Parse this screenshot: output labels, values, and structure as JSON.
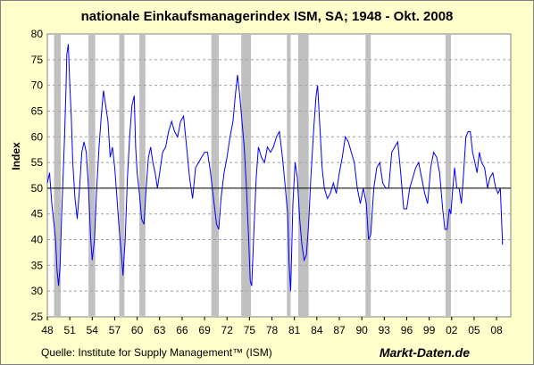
{
  "chart_data": {
    "type": "line",
    "title": "nationale Einkaufsmanagerindex ISM, SA; 1948 - Okt. 2008",
    "ylabel": "Index",
    "xlabel": "",
    "ylim": [
      25,
      80
    ],
    "yticks": [
      25,
      30,
      35,
      40,
      45,
      50,
      55,
      60,
      65,
      70,
      75,
      80
    ],
    "xlim": [
      1948,
      2009.9
    ],
    "xticks": [
      "48",
      "51",
      "54",
      "57",
      "60",
      "63",
      "66",
      "69",
      "72",
      "75",
      "78",
      "81",
      "84",
      "87",
      "90",
      "93",
      "96",
      "99",
      "02",
      "05",
      "08"
    ],
    "reference_line": 50,
    "grid": "horizontal dashed",
    "recessions": [
      [
        1948.9,
        1949.8
      ],
      [
        1953.5,
        1954.4
      ],
      [
        1957.6,
        1958.3
      ],
      [
        1960.3,
        1961.1
      ],
      [
        1969.9,
        1970.9
      ],
      [
        1973.9,
        1975.2
      ],
      [
        1980.0,
        1980.5
      ],
      [
        1981.5,
        1982.9
      ],
      [
        1990.5,
        1991.2
      ],
      [
        2001.2,
        2001.9
      ]
    ],
    "series": [
      {
        "color": "#0000ff",
        "points": [
          [
            1948.0,
            51
          ],
          [
            1948.3,
            53
          ],
          [
            1948.6,
            47
          ],
          [
            1948.9,
            43
          ],
          [
            1949.1,
            40
          ],
          [
            1949.3,
            34
          ],
          [
            1949.5,
            31
          ],
          [
            1949.7,
            35
          ],
          [
            1949.9,
            44
          ],
          [
            1950.1,
            52
          ],
          [
            1950.3,
            60
          ],
          [
            1950.5,
            70
          ],
          [
            1950.6,
            76
          ],
          [
            1950.8,
            78
          ],
          [
            1951.0,
            70
          ],
          [
            1951.2,
            64
          ],
          [
            1951.4,
            55
          ],
          [
            1951.7,
            48
          ],
          [
            1952.0,
            44
          ],
          [
            1952.3,
            50
          ],
          [
            1952.6,
            57
          ],
          [
            1952.9,
            59
          ],
          [
            1953.2,
            57
          ],
          [
            1953.5,
            50
          ],
          [
            1953.8,
            40
          ],
          [
            1954.0,
            36
          ],
          [
            1954.3,
            40
          ],
          [
            1954.6,
            50
          ],
          [
            1954.9,
            58
          ],
          [
            1955.2,
            64
          ],
          [
            1955.5,
            69
          ],
          [
            1955.8,
            66
          ],
          [
            1956.1,
            63
          ],
          [
            1956.4,
            56
          ],
          [
            1956.7,
            58
          ],
          [
            1957.0,
            54
          ],
          [
            1957.3,
            48
          ],
          [
            1957.6,
            42
          ],
          [
            1957.9,
            37
          ],
          [
            1958.1,
            33
          ],
          [
            1958.4,
            40
          ],
          [
            1958.7,
            52
          ],
          [
            1959.0,
            60
          ],
          [
            1959.3,
            66
          ],
          [
            1959.6,
            68
          ],
          [
            1959.8,
            58
          ],
          [
            1960.0,
            53
          ],
          [
            1960.3,
            49
          ],
          [
            1960.6,
            44
          ],
          [
            1960.9,
            43
          ],
          [
            1961.2,
            50
          ],
          [
            1961.5,
            56
          ],
          [
            1961.8,
            58
          ],
          [
            1962.1,
            55
          ],
          [
            1962.4,
            53
          ],
          [
            1962.7,
            50
          ],
          [
            1963.0,
            53
          ],
          [
            1963.4,
            57
          ],
          [
            1963.8,
            58
          ],
          [
            1964.2,
            61
          ],
          [
            1964.6,
            63
          ],
          [
            1965.0,
            61
          ],
          [
            1965.4,
            60
          ],
          [
            1965.8,
            63
          ],
          [
            1966.2,
            64
          ],
          [
            1966.6,
            58
          ],
          [
            1967.0,
            52
          ],
          [
            1967.4,
            48
          ],
          [
            1967.8,
            54
          ],
          [
            1968.2,
            55
          ],
          [
            1968.6,
            56
          ],
          [
            1969.0,
            57
          ],
          [
            1969.4,
            57
          ],
          [
            1969.8,
            53
          ],
          [
            1970.2,
            48
          ],
          [
            1970.6,
            43
          ],
          [
            1970.9,
            42
          ],
          [
            1971.2,
            48
          ],
          [
            1971.6,
            53
          ],
          [
            1972.0,
            56
          ],
          [
            1972.4,
            60
          ],
          [
            1972.8,
            63
          ],
          [
            1973.1,
            68
          ],
          [
            1973.4,
            72
          ],
          [
            1973.7,
            68
          ],
          [
            1974.0,
            63
          ],
          [
            1974.3,
            58
          ],
          [
            1974.6,
            50
          ],
          [
            1974.9,
            40
          ],
          [
            1975.1,
            32
          ],
          [
            1975.3,
            31
          ],
          [
            1975.6,
            42
          ],
          [
            1975.9,
            52
          ],
          [
            1976.2,
            58
          ],
          [
            1976.6,
            56
          ],
          [
            1977.0,
            55
          ],
          [
            1977.4,
            58
          ],
          [
            1977.8,
            57
          ],
          [
            1978.2,
            58
          ],
          [
            1978.6,
            60
          ],
          [
            1979.0,
            61
          ],
          [
            1979.4,
            56
          ],
          [
            1979.8,
            50
          ],
          [
            1980.1,
            45
          ],
          [
            1980.3,
            35
          ],
          [
            1980.5,
            30
          ],
          [
            1980.8,
            47
          ],
          [
            1981.1,
            55
          ],
          [
            1981.4,
            52
          ],
          [
            1981.7,
            44
          ],
          [
            1982.0,
            39
          ],
          [
            1982.3,
            36
          ],
          [
            1982.6,
            37
          ],
          [
            1982.9,
            43
          ],
          [
            1983.2,
            52
          ],
          [
            1983.6,
            62
          ],
          [
            1983.9,
            68
          ],
          [
            1984.1,
            70
          ],
          [
            1984.4,
            62
          ],
          [
            1984.7,
            54
          ],
          [
            1985.0,
            50
          ],
          [
            1985.4,
            48
          ],
          [
            1985.8,
            49
          ],
          [
            1986.2,
            51
          ],
          [
            1986.6,
            49
          ],
          [
            1987.0,
            53
          ],
          [
            1987.4,
            56
          ],
          [
            1987.8,
            60
          ],
          [
            1988.2,
            59
          ],
          [
            1988.6,
            57
          ],
          [
            1989.0,
            55
          ],
          [
            1989.4,
            50
          ],
          [
            1989.8,
            47
          ],
          [
            1990.2,
            50
          ],
          [
            1990.6,
            47
          ],
          [
            1990.9,
            40
          ],
          [
            1991.2,
            41
          ],
          [
            1991.6,
            50
          ],
          [
            1992.0,
            54
          ],
          [
            1992.4,
            55
          ],
          [
            1992.8,
            51
          ],
          [
            1993.2,
            50
          ],
          [
            1993.6,
            50
          ],
          [
            1994.0,
            57
          ],
          [
            1994.4,
            58
          ],
          [
            1994.8,
            59
          ],
          [
            1995.2,
            53
          ],
          [
            1995.6,
            46
          ],
          [
            1996.0,
            46
          ],
          [
            1996.4,
            50
          ],
          [
            1996.8,
            52
          ],
          [
            1997.2,
            54
          ],
          [
            1997.6,
            55
          ],
          [
            1998.0,
            52
          ],
          [
            1998.4,
            49
          ],
          [
            1998.8,
            47
          ],
          [
            1999.2,
            54
          ],
          [
            1999.6,
            57
          ],
          [
            2000.0,
            56
          ],
          [
            2000.4,
            53
          ],
          [
            2000.8,
            46
          ],
          [
            2001.1,
            42
          ],
          [
            2001.4,
            42
          ],
          [
            2001.7,
            46
          ],
          [
            2001.9,
            45
          ],
          [
            2002.1,
            49
          ],
          [
            2002.4,
            54
          ],
          [
            2002.7,
            50
          ],
          [
            2003.0,
            50
          ],
          [
            2003.3,
            47
          ],
          [
            2003.6,
            53
          ],
          [
            2003.9,
            60
          ],
          [
            2004.2,
            61
          ],
          [
            2004.5,
            61
          ],
          [
            2004.8,
            57
          ],
          [
            2005.1,
            55
          ],
          [
            2005.4,
            53
          ],
          [
            2005.7,
            57
          ],
          [
            2006.0,
            55
          ],
          [
            2006.4,
            54
          ],
          [
            2006.8,
            50
          ],
          [
            2007.1,
            52
          ],
          [
            2007.5,
            53
          ],
          [
            2007.9,
            50
          ],
          [
            2008.2,
            49
          ],
          [
            2008.5,
            50
          ],
          [
            2008.7,
            43
          ],
          [
            2008.8,
            39
          ]
        ]
      }
    ]
  },
  "footer": {
    "source": "Quelle: Institute for Supply Management™ (ISM)",
    "brand": "Markt-Daten.de"
  }
}
